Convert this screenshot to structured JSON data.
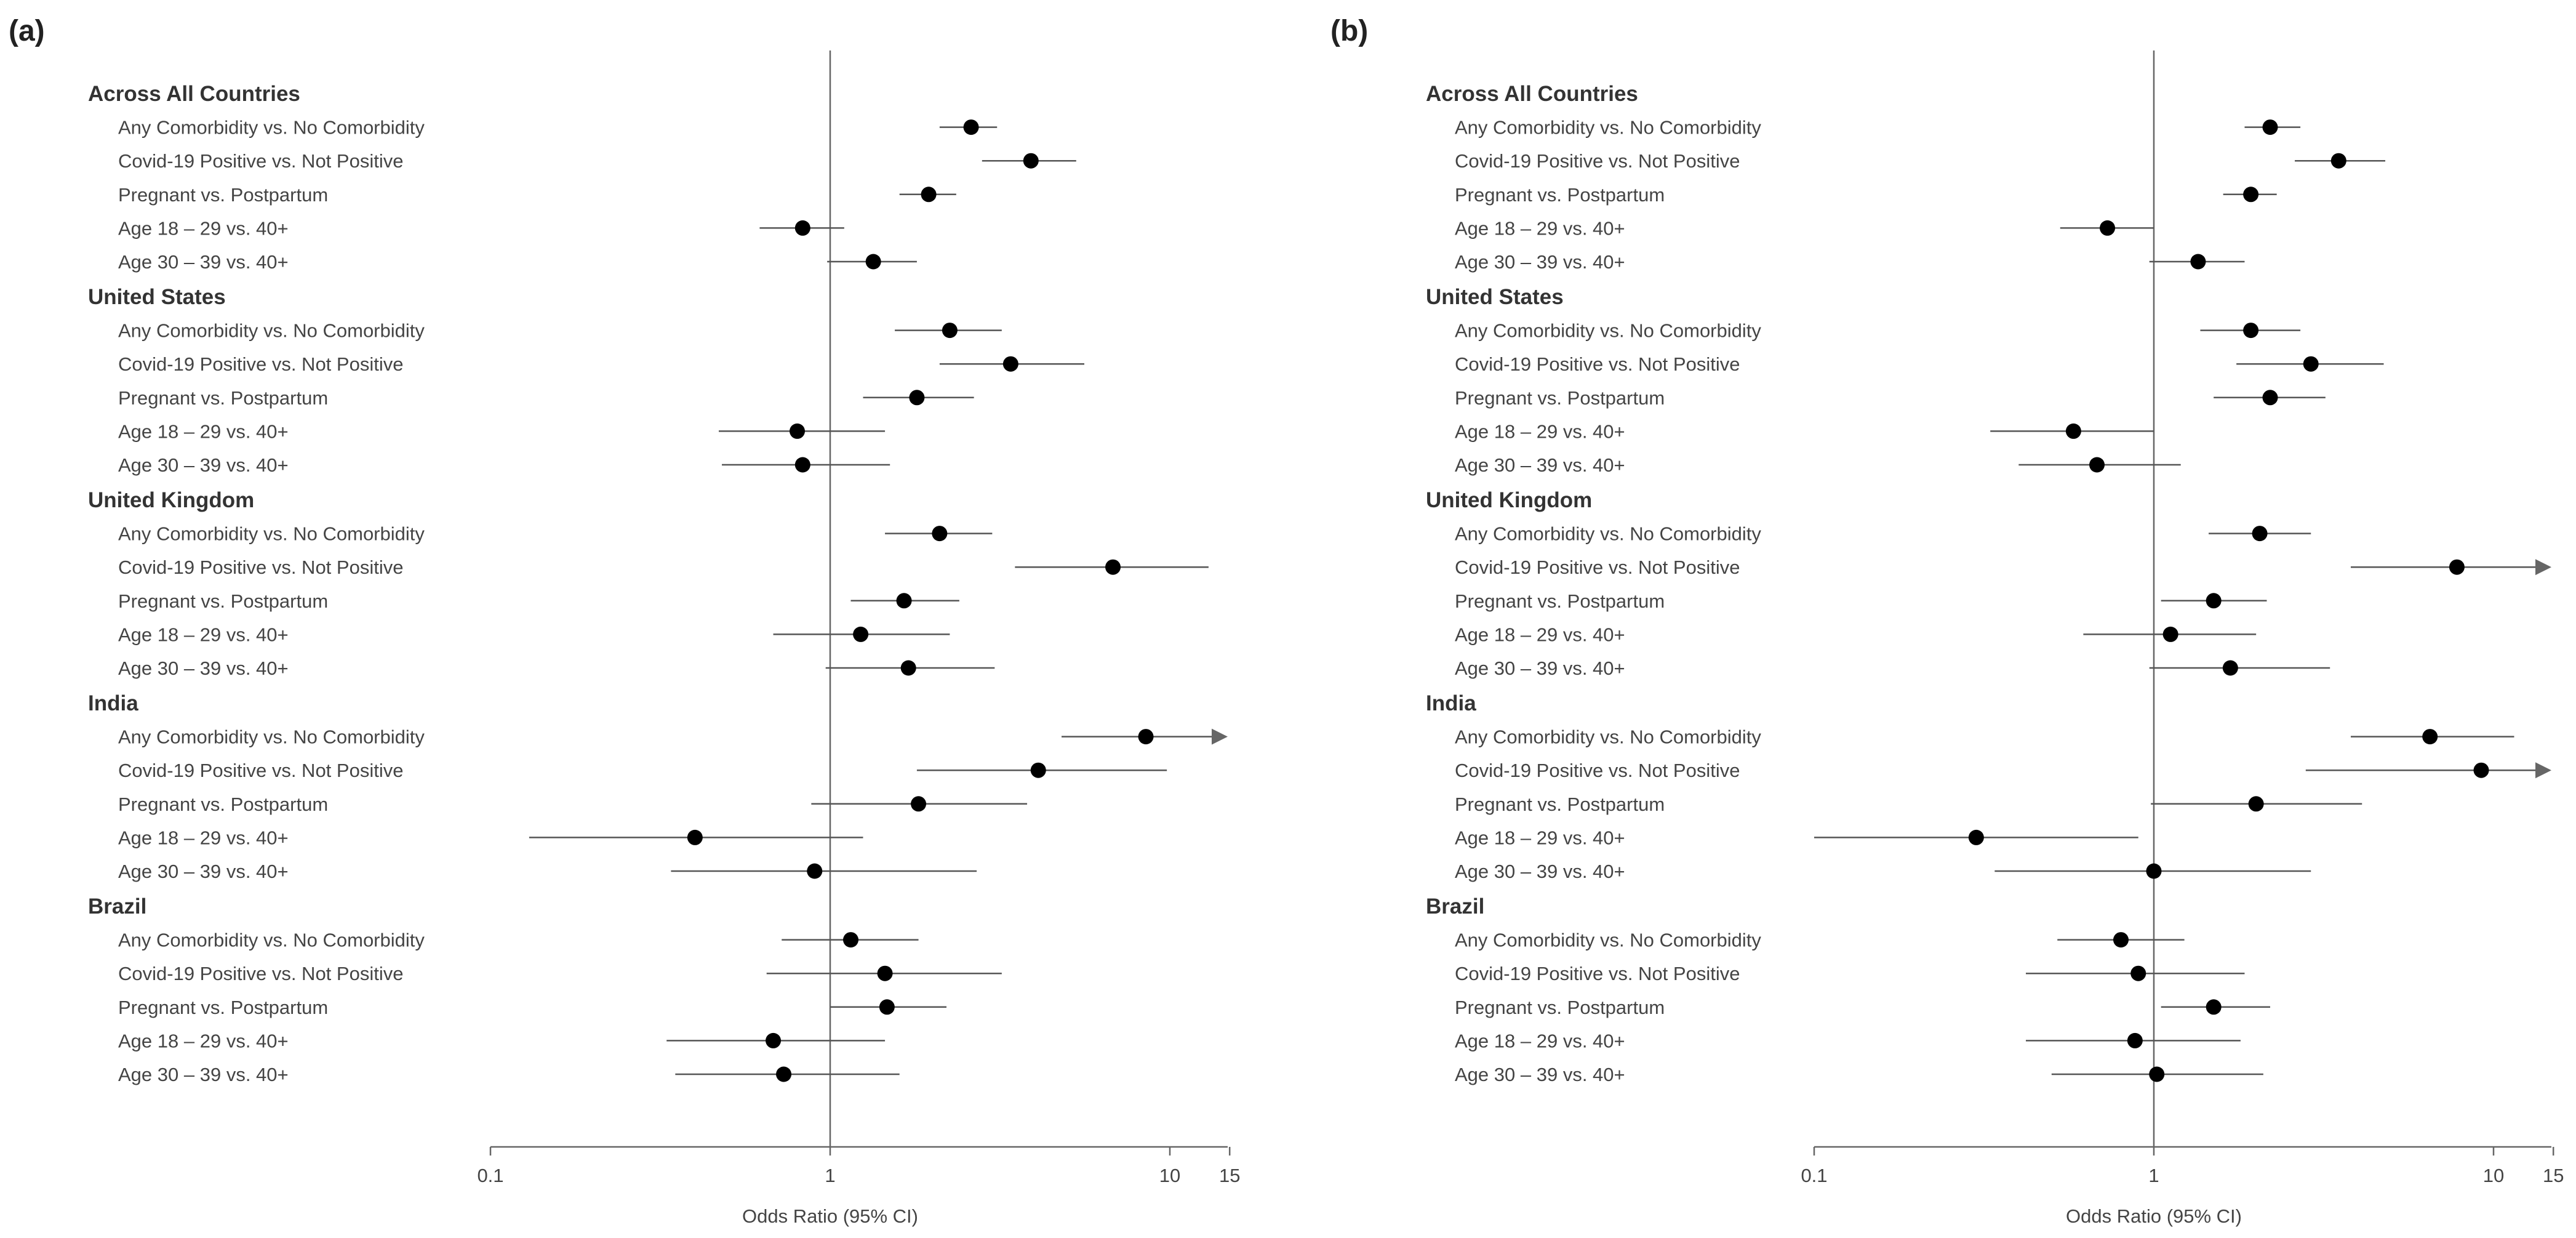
{
  "chart_data": [
    {
      "type": "forest",
      "panel_label": "(a)",
      "xlabel": "Odds Ratio (95% CI)",
      "xscale": "log",
      "xlim": [
        0.1,
        15
      ],
      "ticks": [
        "0.1",
        "1",
        "10",
        "15"
      ],
      "reference_line": 1,
      "groups": [
        {
          "name": "Across All Countries",
          "rows": [
            {
              "label": "Any Comorbidity vs. No Comorbidity",
              "or": 2.6,
              "lo": 2.1,
              "hi": 3.1
            },
            {
              "label": "Covid-19 Positive vs. Not Positive",
              "or": 3.9,
              "lo": 2.8,
              "hi": 5.3
            },
            {
              "label": "Pregnant vs. Postpartum",
              "or": 1.95,
              "lo": 1.6,
              "hi": 2.35
            },
            {
              "label": "Age 18 – 29 vs. 40+",
              "or": 0.83,
              "lo": 0.62,
              "hi": 1.1
            },
            {
              "label": "Age 30 – 39 vs. 40+",
              "or": 1.34,
              "lo": 0.98,
              "hi": 1.8
            }
          ]
        },
        {
          "name": "United States",
          "rows": [
            {
              "label": "Any Comorbidity vs. No Comorbidity",
              "or": 2.25,
              "lo": 1.55,
              "hi": 3.2
            },
            {
              "label": "Covid-19 Positive vs. Not Positive",
              "or": 3.4,
              "lo": 2.1,
              "hi": 5.6
            },
            {
              "label": "Pregnant vs. Postpartum",
              "or": 1.8,
              "lo": 1.25,
              "hi": 2.65
            },
            {
              "label": "Age 18 – 29 vs. 40+",
              "or": 0.8,
              "lo": 0.47,
              "hi": 1.45
            },
            {
              "label": "Age 30 – 39 vs. 40+",
              "or": 0.83,
              "lo": 0.48,
              "hi": 1.5
            }
          ]
        },
        {
          "name": "United Kingdom",
          "rows": [
            {
              "label": "Any Comorbidity vs. No Comorbidity",
              "or": 2.1,
              "lo": 1.45,
              "hi": 3.0
            },
            {
              "label": "Covid-19 Positive vs. Not Positive",
              "or": 6.8,
              "lo": 3.5,
              "hi": 13.0
            },
            {
              "label": "Pregnant vs. Postpartum",
              "or": 1.65,
              "lo": 1.15,
              "hi": 2.4
            },
            {
              "label": "Age 18 – 29 vs. 40+",
              "or": 1.23,
              "lo": 0.68,
              "hi": 2.25
            },
            {
              "label": "Age 30 – 39 vs. 40+",
              "or": 1.7,
              "lo": 0.97,
              "hi": 3.05
            }
          ]
        },
        {
          "name": "India",
          "rows": [
            {
              "label": "Any Comorbidity vs. No Comorbidity",
              "or": 8.5,
              "lo": 4.8,
              "hi": 15,
              "arrow": true
            },
            {
              "label": "Covid-19 Positive vs. Not Positive",
              "or": 4.1,
              "lo": 1.8,
              "hi": 9.8
            },
            {
              "label": "Pregnant vs. Postpartum",
              "or": 1.82,
              "lo": 0.88,
              "hi": 3.8
            },
            {
              "label": "Age 18 – 29 vs. 40+",
              "or": 0.4,
              "lo": 0.13,
              "hi": 1.25
            },
            {
              "label": "Age 30 – 39 vs. 40+",
              "or": 0.9,
              "lo": 0.34,
              "hi": 2.7
            }
          ]
        },
        {
          "name": "Brazil",
          "rows": [
            {
              "label": "Any Comorbidity vs. No Comorbidity",
              "or": 1.15,
              "lo": 0.72,
              "hi": 1.82
            },
            {
              "label": "Covid-19 Positive vs. Not Positive",
              "or": 1.45,
              "lo": 0.65,
              "hi": 3.2
            },
            {
              "label": "Pregnant vs. Postpartum",
              "or": 1.47,
              "lo": 1.0,
              "hi": 2.2
            },
            {
              "label": "Age 18 – 29 vs. 40+",
              "or": 0.68,
              "lo": 0.33,
              "hi": 1.45
            },
            {
              "label": "Age 30 – 39 vs. 40+",
              "or": 0.73,
              "lo": 0.35,
              "hi": 1.6
            }
          ]
        }
      ]
    },
    {
      "type": "forest",
      "panel_label": "(b)",
      "xlabel": "Odds Ratio (95% CI)",
      "xscale": "log",
      "xlim": [
        0.1,
        15
      ],
      "ticks": [
        "0.1",
        "1",
        "10",
        "15"
      ],
      "reference_line": 1,
      "groups": [
        {
          "name": "Across All Countries",
          "rows": [
            {
              "label": "Any Comorbidity vs. No Comorbidity",
              "or": 2.2,
              "lo": 1.85,
              "hi": 2.7
            },
            {
              "label": "Covid-19 Positive vs. Not Positive",
              "or": 3.5,
              "lo": 2.6,
              "hi": 4.8
            },
            {
              "label": "Pregnant vs. Postpartum",
              "or": 1.93,
              "lo": 1.6,
              "hi": 2.3
            },
            {
              "label": "Age 18 – 29 vs. 40+",
              "or": 0.73,
              "lo": 0.53,
              "hi": 1.0
            },
            {
              "label": "Age 30 – 39 vs. 40+",
              "or": 1.35,
              "lo": 0.97,
              "hi": 1.85
            }
          ]
        },
        {
          "name": "United States",
          "rows": [
            {
              "label": "Any Comorbidity vs. No Comorbidity",
              "or": 1.93,
              "lo": 1.37,
              "hi": 2.7
            },
            {
              "label": "Covid-19 Positive vs. Not Positive",
              "or": 2.9,
              "lo": 1.75,
              "hi": 4.75
            },
            {
              "label": "Pregnant vs. Postpartum",
              "or": 2.2,
              "lo": 1.5,
              "hi": 3.2
            },
            {
              "label": "Age 18 – 29 vs. 40+",
              "or": 0.58,
              "lo": 0.33,
              "hi": 1.0
            },
            {
              "label": "Age 30 – 39 vs. 40+",
              "or": 0.68,
              "lo": 0.4,
              "hi": 1.2
            }
          ]
        },
        {
          "name": "United Kingdom",
          "rows": [
            {
              "label": "Any Comorbidity vs. No Comorbidity",
              "or": 2.05,
              "lo": 1.45,
              "hi": 2.9
            },
            {
              "label": "Covid-19 Positive vs. Not Positive",
              "or": 7.8,
              "lo": 3.8,
              "hi": 15,
              "arrow": true
            },
            {
              "label": "Pregnant vs. Postpartum",
              "or": 1.5,
              "lo": 1.05,
              "hi": 2.15
            },
            {
              "label": "Age 18 – 29 vs. 40+",
              "or": 1.12,
              "lo": 0.62,
              "hi": 2.0
            },
            {
              "label": "Age 30 – 39 vs. 40+",
              "or": 1.68,
              "lo": 0.97,
              "hi": 3.3
            }
          ]
        },
        {
          "name": "India",
          "rows": [
            {
              "label": "Any Comorbidity vs. No Comorbidity",
              "or": 6.5,
              "lo": 3.8,
              "hi": 11.5
            },
            {
              "label": "Covid-19 Positive vs. Not Positive",
              "or": 9.2,
              "lo": 2.8,
              "hi": 15,
              "arrow": true
            },
            {
              "label": "Pregnant vs. Postpartum",
              "or": 2.0,
              "lo": 0.98,
              "hi": 4.1
            },
            {
              "label": "Age 18 – 29 vs. 40+",
              "or": 0.3,
              "lo": 0.1,
              "hi": 0.9
            },
            {
              "label": "Age 30 – 39 vs. 40+",
              "or": 1.0,
              "lo": 0.34,
              "hi": 2.9
            }
          ]
        },
        {
          "name": "Brazil",
          "rows": [
            {
              "label": "Any Comorbidity vs. No Comorbidity",
              "or": 0.8,
              "lo": 0.52,
              "hi": 1.23
            },
            {
              "label": "Covid-19 Positive vs. Not Positive",
              "or": 0.9,
              "lo": 0.42,
              "hi": 1.85
            },
            {
              "label": "Pregnant vs. Postpartum",
              "or": 1.5,
              "lo": 1.05,
              "hi": 2.2
            },
            {
              "label": "Age 18 – 29 vs. 40+",
              "or": 0.88,
              "lo": 0.42,
              "hi": 1.8
            },
            {
              "label": "Age 30 – 39 vs. 40+",
              "or": 1.02,
              "lo": 0.5,
              "hi": 2.1
            }
          ]
        }
      ]
    }
  ],
  "colors": {
    "marker": "#000000",
    "ci_line": "#555555",
    "axis": "#666666",
    "arrow": "#666666"
  }
}
